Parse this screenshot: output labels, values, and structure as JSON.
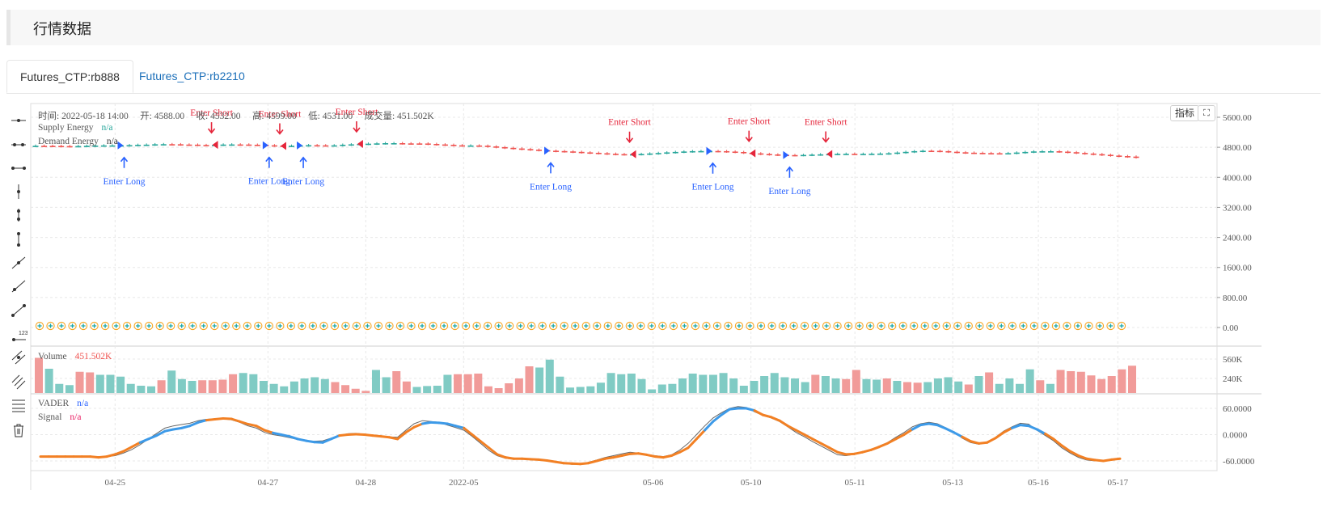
{
  "page": {
    "title": "行情数据"
  },
  "tabs": [
    {
      "label": "Futures_CTP:rb888",
      "active": true
    },
    {
      "label": "Futures_CTP:rb2210",
      "active": false
    }
  ],
  "toolbar": {
    "icons": [
      "horizontal-ray-icon",
      "horizontal-line-icon",
      "horizontal-segment-icon",
      "vertical-line-icon",
      "vertical-segment-icon",
      "vertical-bar-icon",
      "trend-line-icon",
      "ray-icon",
      "segment-icon",
      "price-label-icon",
      "parallel-channel-icon",
      "parallel-lines-icon",
      "object-tree-icon",
      "trash-icon"
    ]
  },
  "buttons": {
    "indicators": "指标",
    "fullscreen_icon": "fullscreen-icon"
  },
  "legend": {
    "ohlc": "时间: 2022-05-18 14:00　 开: 4588.00　 收: 4532.00　 高: 4599.00　 低: 4531.00　 成交量: 451.502K",
    "supply_label": "Supply Energy",
    "supply_value": "n/a",
    "demand_label": "Demand Energy",
    "demand_value": "n/a",
    "volume_label": "Volume",
    "volume_value": "451.502K",
    "vader_label": "VADER",
    "vader_value": "n/a",
    "signal_label": "Signal",
    "signal_value": "n/a"
  },
  "colors": {
    "up": "#26a69a",
    "down": "#ef5350",
    "vol_up": "#80cbc4",
    "vol_down": "#f19b99",
    "long": "#2962ff",
    "short": "#e5263b",
    "vader_up": "#3d9ae8",
    "vader_down": "#f28024",
    "signal": "#666666"
  },
  "chart_data": [
    {
      "type": "candlestick",
      "y_ticks": [
        "5600.00",
        "4800.00",
        "4000.00",
        "3200.00",
        "2400.00",
        "1600.00",
        "800.00",
        "0.00"
      ],
      "ylim": [
        0,
        5600
      ],
      "x_ticks": [
        "04-25",
        "04-27",
        "04-28",
        "2022-05",
        "05-06",
        "05-10",
        "05-11",
        "05-13",
        "05-16",
        "05-17"
      ],
      "closes": [
        4840,
        4838,
        4836,
        4832,
        4828,
        4833,
        4839,
        4845,
        4850,
        4850,
        4851,
        4857,
        4865,
        4870,
        4880,
        4883,
        4881,
        4873,
        4870,
        4860,
        4859,
        4864,
        4873,
        4876,
        4874,
        4868,
        4863,
        4853,
        4842,
        4836,
        4841,
        4850,
        4856,
        4852,
        4850,
        4852,
        4868,
        4879,
        4890,
        4896,
        4904,
        4910,
        4910,
        4904,
        4903,
        4901,
        4889,
        4876,
        4866,
        4853,
        4847,
        4848,
        4842,
        4823,
        4804,
        4785,
        4768,
        4752,
        4737,
        4722,
        4709,
        4699,
        4690,
        4678,
        4664,
        4653,
        4641,
        4628,
        4618,
        4612,
        4615,
        4622,
        4635,
        4648,
        4664,
        4676,
        4688,
        4697,
        4700,
        4701,
        4697,
        4686,
        4674,
        4654,
        4638,
        4622,
        4609,
        4599,
        4593,
        4592,
        4597,
        4605,
        4612,
        4620,
        4626,
        4627,
        4625,
        4626,
        4629,
        4633,
        4641,
        4659,
        4678,
        4697,
        4708,
        4706,
        4697,
        4681,
        4667,
        4656,
        4651,
        4645,
        4642,
        4641,
        4644,
        4660,
        4676,
        4690,
        4695,
        4695,
        4684,
        4669,
        4650,
        4633,
        4617,
        4600,
        4580,
        4565,
        4552,
        4532
      ],
      "enter_long_label": "Enter Long",
      "enter_short_label": "Enter Short",
      "enter_long_bars": [
        10,
        27,
        31,
        60,
        79,
        88
      ],
      "enter_short_bars": [
        21,
        29,
        38,
        70,
        84,
        93
      ]
    },
    {
      "type": "bar",
      "title": "Volume",
      "y_ticks": [
        "560K",
        "240K"
      ],
      "ylim": [
        0,
        640
      ],
      "values": [
        580,
        400,
        150,
        130,
        350,
        340,
        300,
        300,
        270,
        150,
        120,
        110,
        210,
        370,
        230,
        200,
        210,
        210,
        220,
        310,
        330,
        310,
        200,
        150,
        110,
        190,
        240,
        260,
        230,
        180,
        130,
        70,
        35,
        380,
        260,
        360,
        190,
        100,
        115,
        120,
        300,
        310,
        310,
        320,
        110,
        80,
        160,
        240,
        440,
        420,
        550,
        270,
        90,
        100,
        110,
        170,
        330,
        310,
        320,
        230,
        60,
        140,
        150,
        240,
        320,
        300,
        300,
        330,
        240,
        120,
        200,
        280,
        330,
        260,
        240,
        180,
        300,
        280,
        240,
        230,
        380,
        230,
        220,
        240,
        200,
        180,
        170,
        180,
        240,
        260,
        190,
        140,
        280,
        340,
        150,
        240,
        150,
        390,
        210,
        150,
        380,
        360,
        350,
        290,
        230,
        280,
        390,
        450
      ],
      "up_bars": [
        1,
        2,
        3,
        6,
        7,
        8,
        9,
        10,
        11,
        13,
        14,
        15,
        20,
        21,
        22,
        23,
        24,
        25,
        26,
        27,
        28,
        33,
        34,
        37,
        38,
        39,
        40,
        49,
        50,
        51,
        52,
        53,
        54,
        55,
        56,
        57,
        58,
        59,
        60,
        61,
        62,
        63,
        64,
        65,
        66,
        67,
        68,
        69,
        70,
        71,
        72,
        73,
        74,
        75,
        77,
        78,
        81,
        82,
        84,
        87,
        88,
        89,
        90,
        92,
        94,
        95,
        96,
        97,
        99
      ]
    },
    {
      "type": "line",
      "title": "VADER",
      "y_ticks": [
        "60.0000",
        "0.0000",
        "-60.0000"
      ],
      "ylim": [
        -75,
        75
      ],
      "series": [
        {
          "name": "VADER",
          "values": [
            -50,
            -50,
            -50,
            -50,
            -50,
            -50,
            -50,
            -52,
            -50,
            -45,
            -38,
            -28,
            -18,
            -10,
            -2,
            8,
            12,
            15,
            20,
            28,
            33,
            35,
            37,
            36,
            30,
            24,
            20,
            10,
            4,
            0,
            -4,
            -10,
            -14,
            -17,
            -18,
            -10,
            -2,
            0,
            1,
            0,
            -2,
            -4,
            -6,
            -10,
            5,
            17,
            25,
            28,
            27,
            25,
            20,
            15,
            0,
            -15,
            -30,
            -45,
            -52,
            -55,
            -55,
            -56,
            -57,
            -59,
            -62,
            -65,
            -66,
            -67,
            -65,
            -60,
            -55,
            -52,
            -48,
            -44,
            -43,
            -46,
            -50,
            -52,
            -48,
            -40,
            -30,
            -10,
            10,
            30,
            45,
            58,
            60,
            60,
            55,
            45,
            40,
            32,
            20,
            10,
            0,
            -10,
            -20,
            -30,
            -40,
            -45,
            -44,
            -40,
            -35,
            -28,
            -20,
            -10,
            0,
            12,
            22,
            25,
            22,
            14,
            5,
            -5,
            -15,
            -20,
            -18,
            -8,
            5,
            15,
            22,
            20,
            12,
            2,
            -10,
            -25,
            -38,
            -48,
            -55,
            -58,
            -60,
            -57,
            -55
          ],
          "up": [
            12,
            20,
            28,
            36,
            46,
            51,
            80,
            86,
            105,
            111,
            117,
            121
          ]
        }
      ],
      "signal_values": [
        -50,
        -50,
        -50,
        -50,
        -50,
        -50,
        -50,
        -50,
        -50,
        -48,
        -42,
        -34,
        -23,
        -10,
        3,
        15,
        20,
        23,
        26,
        32,
        35,
        36,
        36,
        34,
        28,
        20,
        15,
        5,
        0,
        -3,
        -7,
        -11,
        -14,
        -15,
        -14,
        -8,
        -2,
        2,
        3,
        1,
        -1,
        -3,
        -5,
        -6,
        10,
        25,
        32,
        30,
        28,
        22,
        16,
        10,
        -4,
        -20,
        -36,
        -48,
        -54,
        -56,
        -56,
        -56,
        -58,
        -60,
        -63,
        -66,
        -68,
        -68,
        -63,
        -58,
        -52,
        -48,
        -44,
        -40,
        -42,
        -45,
        -48,
        -50,
        -46,
        -35,
        -20,
        0,
        20,
        38,
        50,
        60,
        64,
        62,
        52,
        44,
        38,
        30,
        18,
        5,
        -5,
        -16,
        -26,
        -36,
        -46,
        -48,
        -45,
        -40,
        -34,
        -26,
        -18,
        -6,
        5,
        18,
        25,
        28,
        25,
        16,
        6,
        -8,
        -18,
        -22,
        -18,
        -6,
        8,
        18,
        26,
        24,
        10,
        -2,
        -14,
        -30,
        -42,
        -52,
        -58,
        -60,
        -60,
        -58,
        -55
      ]
    }
  ]
}
